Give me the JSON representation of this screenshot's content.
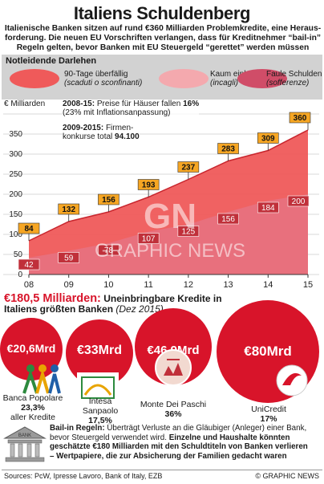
{
  "header": {
    "title": "Italiens Schuldenberg",
    "intro_lines": [
      "Italienische Banken sitzen auf rund €360 Milliarden Problemkredite, eine Heraus-",
      "forderung. Die neuen EU Vorschriften verlangen, dass für Kreditnehmer “bail-in”",
      "Regeln gelten, bevor Banken mit EU Steuergeld  “gerettet” werden müssen"
    ]
  },
  "legend": {
    "title": "Notleidende Darlehen",
    "items": [
      {
        "label": "90-Tage überfällig",
        "sublabel": "(scaduti o sconfinanti)",
        "color": "#ef5a5a"
      },
      {
        "label": "Kaum einbringbar",
        "sublabel": "(incagli)",
        "color": "#f4a9ae"
      },
      {
        "label": "Faule Schulden",
        "sublabel": "(sofferenze)",
        "color": "#d04d68"
      }
    ]
  },
  "notes": {
    "unit": "€ Milliarden",
    "note1_year": "2008-15:",
    "note1_text": "Preise für Häuser fallen",
    "note1_value": "16%",
    "note1_sub": "(23% mit Inflationsanpassung)",
    "note2_year": "2009-2015:",
    "note2_text": "Firmen-",
    "note2_text2": "konkurse total",
    "note2_value": "94.100"
  },
  "chart_data": {
    "type": "area",
    "x": [
      "08",
      "09",
      "10",
      "11",
      "12",
      "13",
      "14",
      "15"
    ],
    "ylim": [
      0,
      400
    ],
    "yticks": [
      0,
      50,
      100,
      150,
      200,
      250,
      300,
      350,
      400
    ],
    "grid": true,
    "series": [
      {
        "name": "Faule Schulden",
        "values": [
          42,
          59,
          78,
          107,
          125,
          156,
          184,
          200
        ],
        "color": "#e8707d"
      },
      {
        "name": "Notleidende Darlehen gesamt",
        "values": [
          84,
          132,
          156,
          193,
          237,
          283,
          309,
          360
        ],
        "color": "#ef5a5a"
      }
    ],
    "labels_bad": [
      "42",
      "59",
      "78",
      "107",
      "125",
      "156",
      "184",
      "200"
    ],
    "labels_total": [
      "84",
      "132",
      "156",
      "193",
      "237",
      "283",
      "309",
      "360"
    ]
  },
  "banks": {
    "headline_amount": "€180,5 Milliarden:",
    "headline_text": "Uneinbringbare Kredite in",
    "headline_line2": "Italiens größten Banken",
    "headline_date": "(Dez 2015)",
    "items": [
      {
        "amount": "€20,6Mrd",
        "name": "Banca Popolare",
        "pct": "23,3%",
        "extra": "aller Kredite"
      },
      {
        "amount": "€33Mrd",
        "name": "Intesa",
        "name2": "Sanpaolo",
        "pct": "17,5%"
      },
      {
        "amount": "€46,9Mrd",
        "name": "Monte Dei Paschi",
        "pct": "36%"
      },
      {
        "amount": "€80Mrd",
        "name": "UniCredit",
        "pct": "17%"
      }
    ]
  },
  "bailin": {
    "bank_sign": "BANK",
    "label": "Bail-in Regeln:",
    "line1": "Überträgt Verluste an die Gläubiger (Anleger) einer Bank,",
    "line2a": "bevor Steuergeld verwendet wird.",
    "line2b": "Einzelne und Haushalte könnten",
    "line3": "geschätzte €180 Milliarden mit den Schuldtiteln von Banken verlieren",
    "line4": "– Wertpapiere, die zur Absicherung der Familien gedacht waren"
  },
  "footer": {
    "sources": "Sources: PcW, Ipresse Lavoro, Bank of Italy, EZB",
    "credit": "© GRAPHIC NEWS"
  },
  "watermark": {
    "text": "GRAPHIC NEWS",
    "logo": "GN"
  }
}
